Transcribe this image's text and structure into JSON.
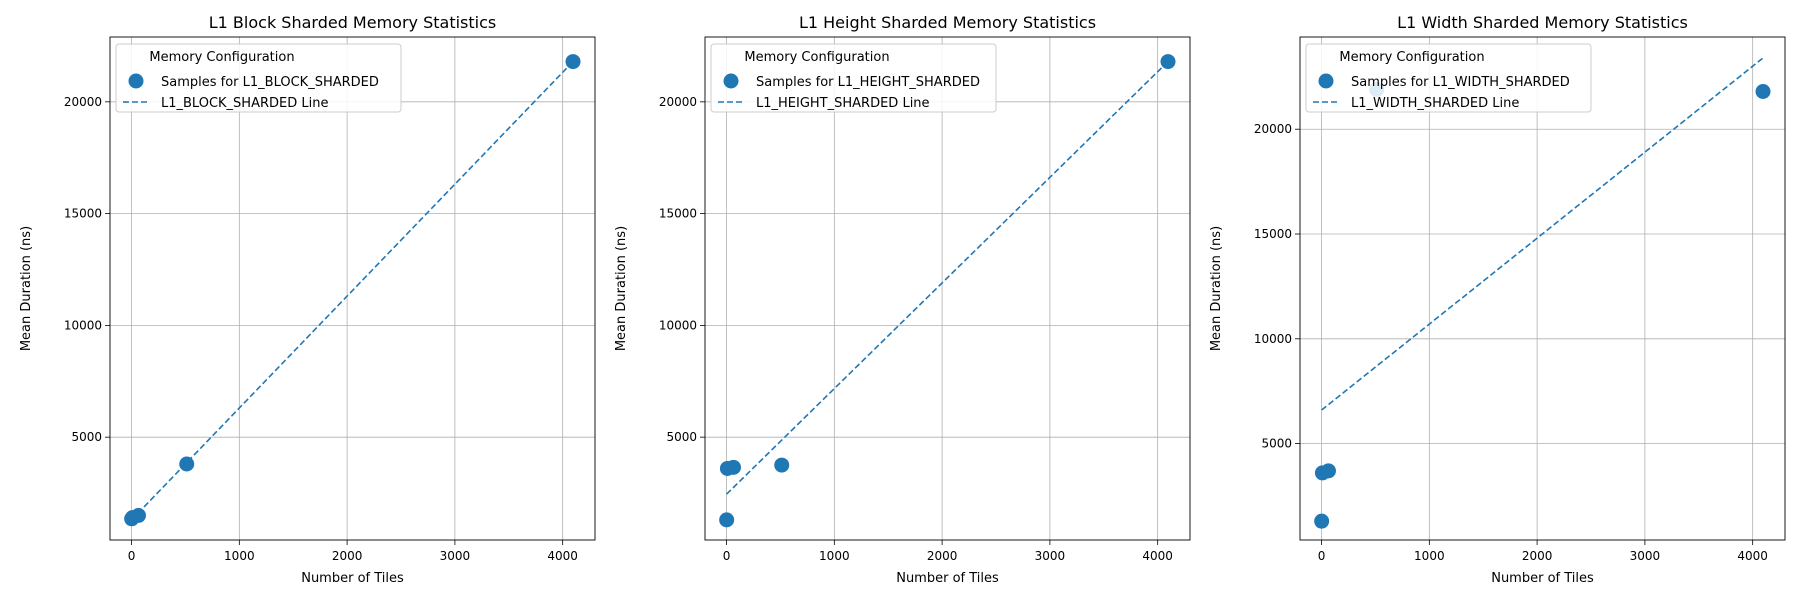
{
  "chart_data": [
    {
      "type": "scatter",
      "title": "L1 Block Sharded Memory Statistics",
      "xlabel": "Number of Tiles",
      "ylabel": "Mean Duration (ns)",
      "xlim": [
        -200,
        4300
      ],
      "ylim": [
        400,
        22900
      ],
      "xticks": [
        0,
        1000,
        2000,
        3000,
        4000
      ],
      "yticks": [
        5000,
        10000,
        15000,
        20000
      ],
      "grid": true,
      "legend": {
        "title": "Memory Configuration",
        "placement": "top-left",
        "entries": [
          "Samples for L1_BLOCK_SHARDED",
          "L1_BLOCK_SHARDED Line"
        ]
      },
      "series": [
        {
          "kind": "scatter",
          "name": "Samples for L1_BLOCK_SHARDED",
          "x": [
            1,
            8,
            64,
            512,
            4096
          ],
          "y": [
            1350,
            1400,
            1500,
            3800,
            21800
          ]
        },
        {
          "kind": "line",
          "name": "L1_BLOCK_SHARDED Line",
          "x": [
            0,
            4096
          ],
          "y": [
            1300,
            21800
          ]
        }
      ]
    },
    {
      "type": "scatter",
      "title": "L1 Height Sharded Memory Statistics",
      "xlabel": "Number of Tiles",
      "ylabel": "Mean Duration (ns)",
      "xlim": [
        -200,
        4300
      ],
      "ylim": [
        400,
        22900
      ],
      "xticks": [
        0,
        1000,
        2000,
        3000,
        4000
      ],
      "yticks": [
        5000,
        10000,
        15000,
        20000
      ],
      "grid": true,
      "legend": {
        "title": "Memory Configuration",
        "placement": "top-left",
        "entries": [
          "Samples for L1_HEIGHT_SHARDED",
          "L1_HEIGHT_SHARDED Line"
        ]
      },
      "series": [
        {
          "kind": "scatter",
          "name": "Samples for L1_HEIGHT_SHARDED",
          "x": [
            1,
            8,
            64,
            512,
            4096
          ],
          "y": [
            1300,
            3600,
            3650,
            3750,
            21800
          ]
        },
        {
          "kind": "line",
          "name": "L1_HEIGHT_SHARDED Line",
          "x": [
            0,
            4096
          ],
          "y": [
            2450,
            21800
          ]
        }
      ]
    },
    {
      "type": "scatter",
      "title": "L1 Width Sharded Memory Statistics",
      "xlabel": "Number of Tiles",
      "ylabel": "Mean Duration (ns)",
      "xlim": [
        -200,
        4300
      ],
      "ylim": [
        400,
        24400
      ],
      "xticks": [
        0,
        1000,
        2000,
        3000,
        4000
      ],
      "yticks": [
        5000,
        10000,
        15000,
        20000
      ],
      "grid": true,
      "legend": {
        "title": "Memory Configuration",
        "placement": "top-left",
        "entries": [
          "Samples for L1_WIDTH_SHARDED",
          "L1_WIDTH_SHARDED Line"
        ]
      },
      "series": [
        {
          "kind": "scatter",
          "name": "Samples for L1_WIDTH_SHARDED",
          "x": [
            1,
            8,
            64,
            512,
            4096
          ],
          "y": [
            1300,
            3600,
            3700,
            21900,
            21800
          ]
        },
        {
          "kind": "line",
          "name": "L1_WIDTH_SHARDED Line",
          "x": [
            0,
            4096
          ],
          "y": [
            6600,
            23400
          ]
        }
      ]
    }
  ],
  "colors": {
    "series": "#1f77b4",
    "grid": "#b0b0b0",
    "axis": "#000000",
    "legend_border": "#cccccc"
  }
}
